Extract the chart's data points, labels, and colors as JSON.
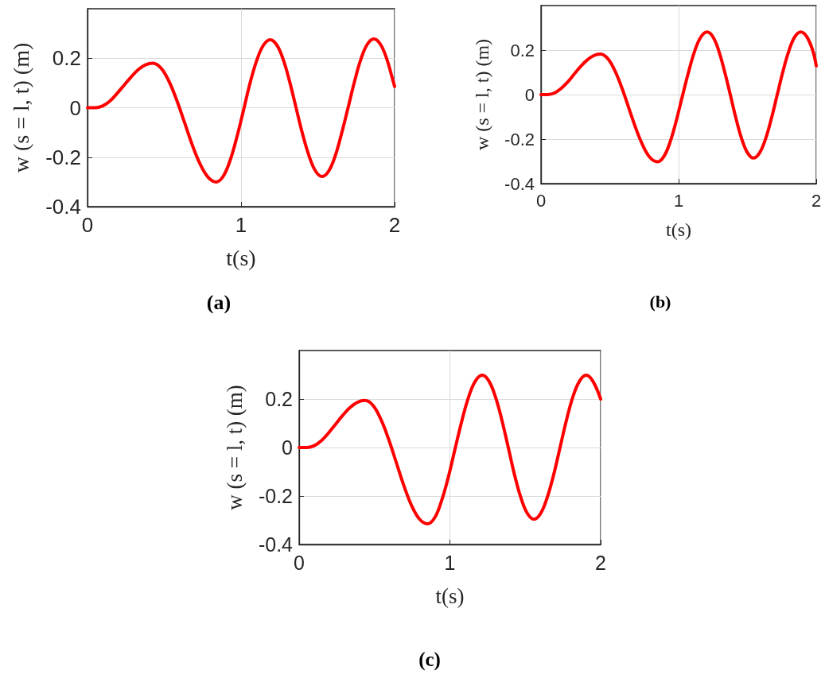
{
  "chart_data": [
    {
      "type": "line",
      "xlabel": "t(s)",
      "ylabel": "w (s = l, t) (m)",
      "annotations": [
        "(a)"
      ],
      "x": [
        0,
        0.05,
        0.097,
        0.144,
        0.19,
        0.237,
        0.284,
        0.331,
        0.377,
        0.424,
        0.476,
        0.528,
        0.58,
        0.632,
        0.683,
        0.735,
        0.787,
        0.839,
        0.883,
        0.927,
        0.971,
        1.015,
        1.058,
        1.102,
        1.146,
        1.19,
        1.232,
        1.275,
        1.317,
        1.359,
        1.401,
        1.444,
        1.486,
        1.528,
        1.57,
        1.612,
        1.654,
        1.697,
        1.739,
        1.781,
        1.823,
        1.865,
        1.907,
        1.949,
        1.991,
        2.0
      ],
      "series": [
        {
          "color": "#ff0000",
          "values": [
            0,
            0,
            0.007,
            0.026,
            0.056,
            0.09,
            0.124,
            0.154,
            0.173,
            0.18,
            0.162,
            0.11,
            0.032,
            -0.06,
            -0.152,
            -0.23,
            -0.282,
            -0.3,
            -0.278,
            -0.216,
            -0.123,
            -0.013,
            0.098,
            0.191,
            0.253,
            0.275,
            0.254,
            0.194,
            0.104,
            -0.002,
            -0.107,
            -0.197,
            -0.257,
            -0.278,
            -0.257,
            -0.197,
            -0.106,
            0,
            0.106,
            0.197,
            0.257,
            0.278,
            0.257,
            0.197,
            0.106,
            0.086
          ]
        }
      ],
      "xlim": [
        0,
        2
      ],
      "xticks": [
        0,
        1,
        2
      ],
      "ylim": [
        -0.4,
        0.4
      ],
      "yticks": [
        -0.4,
        -0.2,
        0,
        0.2
      ],
      "grid": true
    },
    {
      "type": "line",
      "xlabel": "t(s)",
      "ylabel": "w (s = l, t) (m)",
      "annotations": [
        "(b)"
      ],
      "x": [
        0,
        0.05,
        0.098,
        0.145,
        0.193,
        0.24,
        0.288,
        0.335,
        0.383,
        0.43,
        0.482,
        0.534,
        0.586,
        0.638,
        0.69,
        0.742,
        0.794,
        0.846,
        0.891,
        0.936,
        0.981,
        1.026,
        1.072,
        1.117,
        1.162,
        1.207,
        1.249,
        1.291,
        1.333,
        1.376,
        1.418,
        1.46,
        1.502,
        1.544,
        1.587,
        1.63,
        1.673,
        1.716,
        1.759,
        1.802,
        1.845,
        1.888,
        1.931,
        1.974,
        2.0
      ],
      "series": [
        {
          "color": "#ff0000",
          "values": [
            0,
            0,
            0.007,
            0.027,
            0.056,
            0.091,
            0.126,
            0.155,
            0.175,
            0.182,
            0.164,
            0.111,
            0.033,
            -0.06,
            -0.153,
            -0.231,
            -0.284,
            -0.302,
            -0.28,
            -0.217,
            -0.122,
            -0.011,
            0.101,
            0.196,
            0.259,
            0.281,
            0.26,
            0.198,
            0.106,
            -0.002,
            -0.11,
            -0.202,
            -0.263,
            -0.285,
            -0.263,
            -0.202,
            -0.11,
            -0.002,
            0.106,
            0.198,
            0.26,
            0.281,
            0.26,
            0.199,
            0.129
          ]
        }
      ],
      "xlim": [
        0,
        2
      ],
      "xticks": [
        0,
        1,
        2
      ],
      "ylim": [
        -0.4,
        0.4
      ],
      "yticks": [
        -0.4,
        -0.2,
        0,
        0.2
      ],
      "grid": true
    },
    {
      "type": "line",
      "xlabel": "t(s)",
      "ylabel": "w (s = l, t) (m)",
      "annotations": [
        "(c)"
      ],
      "x": [
        0,
        0.05,
        0.098,
        0.147,
        0.195,
        0.243,
        0.291,
        0.34,
        0.388,
        0.436,
        0.488,
        0.54,
        0.592,
        0.644,
        0.695,
        0.747,
        0.799,
        0.851,
        0.897,
        0.942,
        0.988,
        1.033,
        1.079,
        1.124,
        1.17,
        1.215,
        1.258,
        1.301,
        1.344,
        1.387,
        1.429,
        1.472,
        1.515,
        1.558,
        1.601,
        1.644,
        1.688,
        1.731,
        1.774,
        1.817,
        1.861,
        1.904,
        1.947,
        2.0
      ],
      "series": [
        {
          "color": "#ff0000",
          "values": [
            0,
            0,
            0.007,
            0.028,
            0.06,
            0.097,
            0.134,
            0.166,
            0.187,
            0.194,
            0.175,
            0.119,
            0.037,
            -0.061,
            -0.158,
            -0.241,
            -0.296,
            -0.315,
            -0.292,
            -0.225,
            -0.126,
            -0.009,
            0.109,
            0.208,
            0.275,
            0.298,
            0.275,
            0.211,
            0.115,
            0.001,
            -0.113,
            -0.209,
            -0.273,
            -0.296,
            -0.273,
            -0.209,
            -0.113,
            0.001,
            0.115,
            0.211,
            0.275,
            0.298,
            0.275,
            0.2
          ]
        }
      ],
      "xlim": [
        0,
        2
      ],
      "xticks": [
        0,
        1,
        2
      ],
      "ylim": [
        -0.4,
        0.4
      ],
      "yticks": [
        -0.4,
        -0.2,
        0,
        0.2
      ],
      "grid": true
    }
  ]
}
